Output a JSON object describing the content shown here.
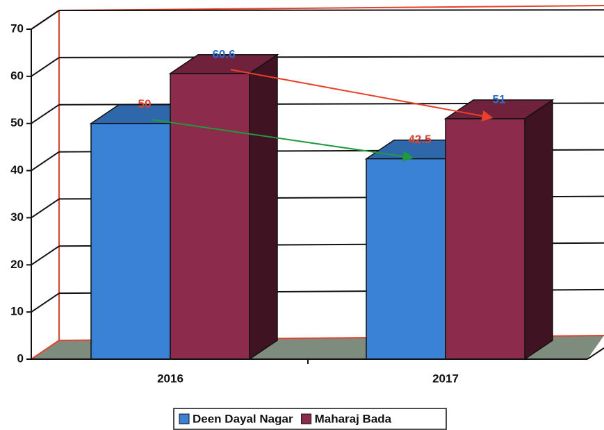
{
  "chart_data": {
    "type": "bar3d",
    "categories": [
      "2016",
      "2017"
    ],
    "series": [
      {
        "name": "Deen Dayal Nagar",
        "color": "#3a82d6",
        "label_color": "#e8402a",
        "values": [
          50,
          42.5
        ]
      },
      {
        "name": "Maharaj Bada",
        "color": "#8c2b4b",
        "label_color": "#2a6fd0",
        "values": [
          60.6,
          51
        ]
      }
    ],
    "ylim": [
      0,
      70
    ],
    "yticks": [
      0,
      10,
      20,
      30,
      40,
      50,
      60,
      70
    ],
    "grid": true,
    "legend": "bottom"
  }
}
